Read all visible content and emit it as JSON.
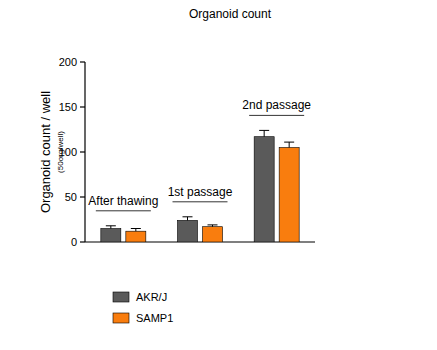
{
  "chart_data": {
    "type": "bar",
    "title": "Organoid count",
    "y_label": "Organoid count / well",
    "y_sublabel": "(50org/well)",
    "categories": [
      "After thawing",
      "1st passage",
      "2nd passage"
    ],
    "series": [
      {
        "name": "AKR/J",
        "color": "#5a5a5a",
        "values": [
          15,
          24,
          117
        ],
        "errors": [
          3,
          4,
          7
        ]
      },
      {
        "name": "SAMP1",
        "color": "#f97d0e",
        "values": [
          12,
          17,
          105
        ],
        "errors": [
          3,
          2,
          6
        ]
      }
    ],
    "ylim": [
      0,
      200
    ],
    "yticks": [
      0,
      50,
      100,
      150,
      200
    ],
    "grid": false,
    "legend": "bottom-left"
  }
}
